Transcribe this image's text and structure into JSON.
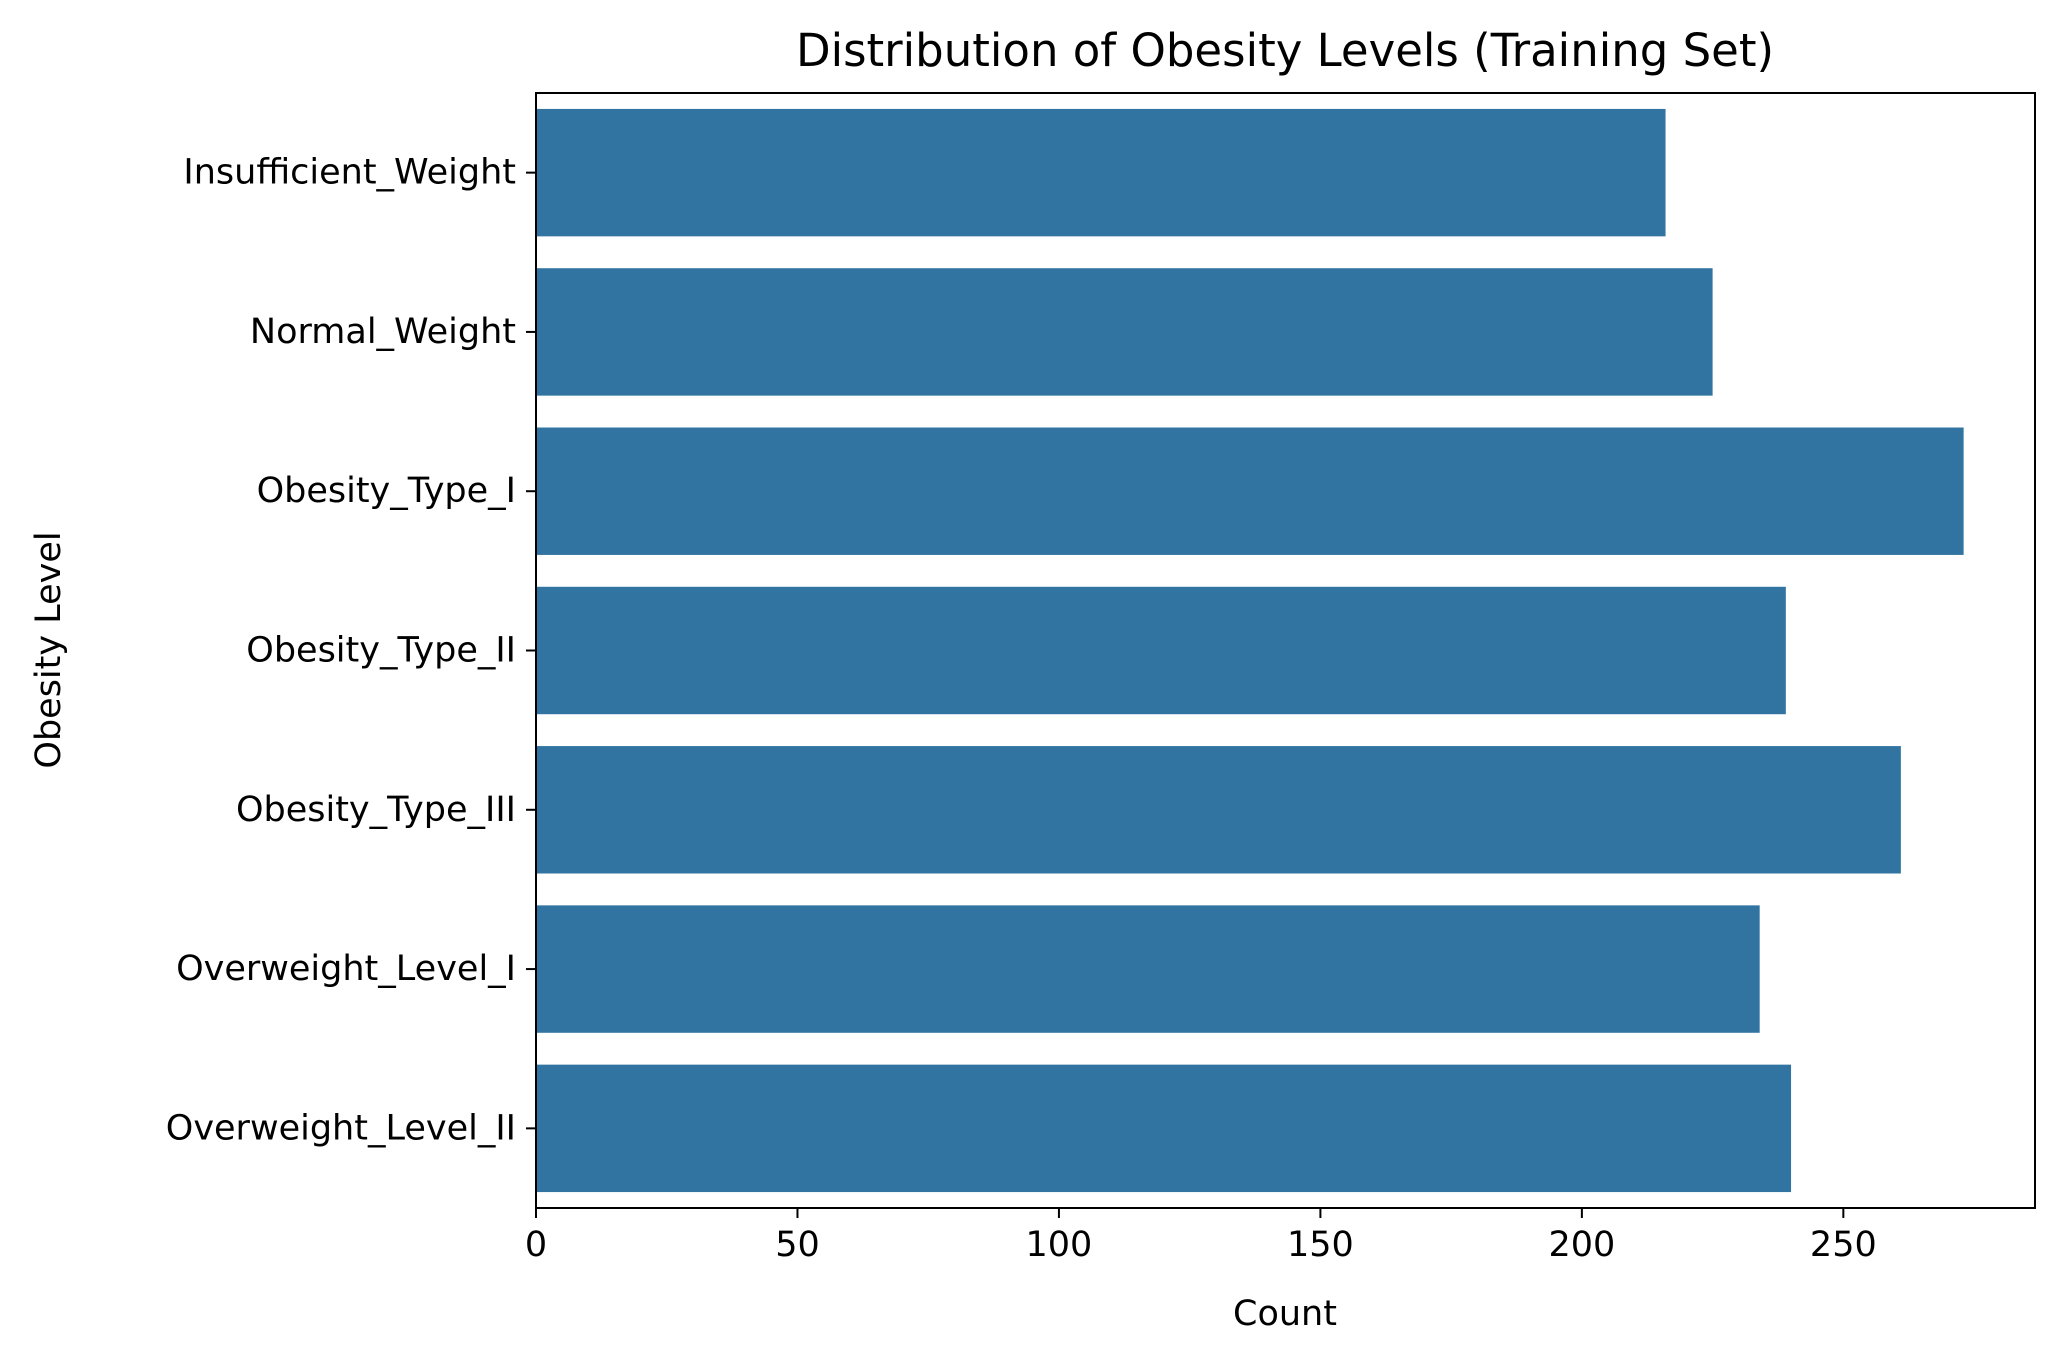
{
  "chart_data": {
    "type": "bar",
    "orientation": "horizontal",
    "title": "Distribution of Obesity Levels (Training Set)",
    "xlabel": "Count",
    "ylabel": "Obesity Level",
    "categories": [
      "Insufficient_Weight",
      "Normal_Weight",
      "Obesity_Type_I",
      "Obesity_Type_II",
      "Obesity_Type_III",
      "Overweight_Level_I",
      "Overweight_Level_II"
    ],
    "values": [
      216,
      225,
      273,
      239,
      261,
      234,
      240
    ],
    "xlim": [
      0,
      286.65
    ],
    "xticks": [
      0,
      50,
      100,
      150,
      200,
      250
    ],
    "grid": false,
    "legend": "none",
    "bar_color": "#3274a1"
  }
}
